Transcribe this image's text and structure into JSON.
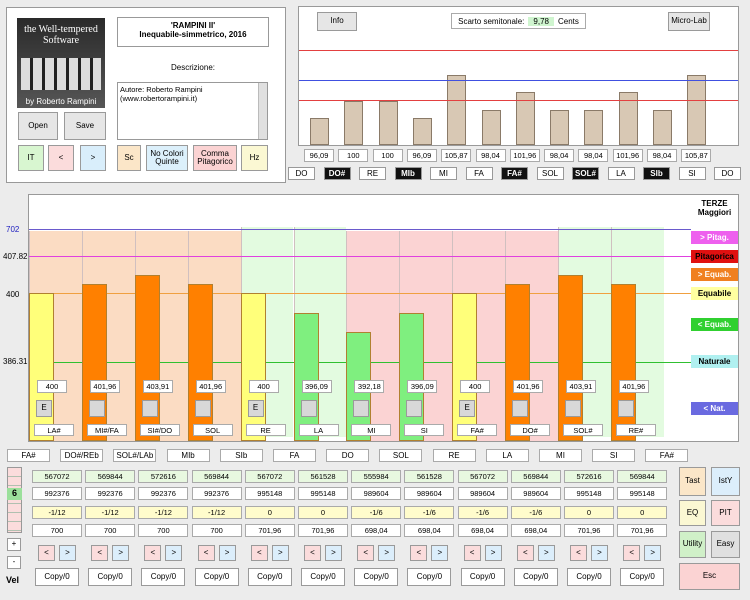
{
  "logo": {
    "line1": "the Well-tempered",
    "line2": "Software",
    "author": "by Roberto Rampini"
  },
  "title": {
    "line1": "'RAMPINI II'",
    "line2": "Inequabile-simmetrico, 2016"
  },
  "descrizione_label": "Descrizione:",
  "descrizione_text": "Autore: Roberto Rampini\n(www.robertorampini.it)",
  "buttons": {
    "open": "Open",
    "save": "Save",
    "it": "IT",
    "prev": "<",
    "next": ">",
    "sc": "Sc",
    "no_colori": "No Colori Quinte",
    "comma": "Comma Pitagorico",
    "hz": "Hz",
    "info": "Info",
    "microlab": "Micro-Lab",
    "tast": "Tast",
    "isty": "IstY",
    "eq": "EQ",
    "pit": "PIT",
    "utility": "Utility",
    "easy": "Easy",
    "esc": "Esc",
    "plus": "+",
    "minus": "-",
    "vel": "Vel"
  },
  "semitone": {
    "label": "Scarto semitonale:",
    "value": "9,78",
    "unit": "Cents"
  },
  "top_chart": {
    "values": [
      96.09,
      100,
      100,
      96.09,
      105.87,
      98.04,
      101.96,
      98.04,
      98.04,
      101.96,
      98.04,
      105.87
    ],
    "labels": [
      "96,09",
      "100",
      "100",
      "96,09",
      "105,87",
      "98,04",
      "101,96",
      "98,04",
      "98,04",
      "101,96",
      "98,04",
      "105,87"
    ],
    "ymin": 90,
    "ymax": 112
  },
  "notes_top": [
    {
      "n": "DO",
      "dark": false
    },
    {
      "n": "DO#",
      "dark": true
    },
    {
      "n": "RE",
      "dark": false
    },
    {
      "n": "MIb",
      "dark": true
    },
    {
      "n": "MI",
      "dark": false
    },
    {
      "n": "FA",
      "dark": false
    },
    {
      "n": "FA#",
      "dark": true
    },
    {
      "n": "SOL",
      "dark": false
    },
    {
      "n": "SOL#",
      "dark": true
    },
    {
      "n": "LA",
      "dark": false
    },
    {
      "n": "SIb",
      "dark": true
    },
    {
      "n": "SI",
      "dark": false
    },
    {
      "n": "DO",
      "dark": false
    }
  ],
  "thirds": {
    "axis": [
      "702",
      "407.82",
      "400",
      "386.31"
    ],
    "legend": {
      "title1": "TERZE",
      "title2": "Maggiori",
      "pitag": "> Pitag.",
      "pitagorica": "Pitagorica",
      "equab_gt": "> Equab.",
      "equabile": "Equabile",
      "equab_lt": "< Equab.",
      "naturale": "Naturale",
      "nat_lt": "< Nat."
    },
    "values": [
      400,
      401.96,
      403.91,
      401.96,
      400,
      396.09,
      392.18,
      396.09,
      400,
      401.96,
      403.91,
      401.96
    ],
    "labels": [
      "400",
      "401,96",
      "403,91",
      "401,96",
      "400",
      "396,09",
      "392,18",
      "396,09",
      "400",
      "401,96",
      "403,91",
      "401,96"
    ],
    "colors": [
      "#ffff7a",
      "#ff8000",
      "#ff8000",
      "#ff8000",
      "#ffff7a",
      "#7fef7f",
      "#7fef7f",
      "#7fef7f",
      "#ffff7a",
      "#ff8000",
      "#ff8000",
      "#ff8000"
    ],
    "bg": [
      "#fbdcc3",
      "#fbdcc3",
      "#fbdcc3",
      "#fbdcc3",
      "#e3fbe0",
      "#e3fbe0",
      "#fbd3d3",
      "#fbd3d3",
      "#fbd3d3",
      "#fbd3d3",
      "#e3fbe0",
      "#e3fbe0"
    ],
    "btn": [
      "E",
      "",
      "",
      "",
      "E",
      "",
      "",
      "",
      "E",
      "",
      "",
      ""
    ],
    "names": [
      "LA#",
      "MI#/FA",
      "SI#/DO",
      "SOL",
      "RE",
      "LA",
      "MI",
      "SI",
      "FA#",
      "DO#",
      "SOL#",
      "RE#"
    ]
  },
  "fifths_header": [
    "FA#",
    "DO#/REb",
    "SOL#/LAb",
    "MIb",
    "SIb",
    "FA",
    "DO",
    "SOL",
    "RE",
    "LA",
    "MI",
    "SI",
    "FA#"
  ],
  "row1": [
    "567072",
    "569844",
    "572616",
    "569844",
    "567072",
    "561528",
    "555984",
    "561528",
    "567072",
    "569844",
    "572616",
    "569844"
  ],
  "row2": [
    "992376",
    "992376",
    "992376",
    "992376",
    "995148",
    "995148",
    "989604",
    "989604",
    "989604",
    "989604",
    "995148",
    "995148"
  ],
  "row3": [
    "-1/12",
    "-1/12",
    "-1/12",
    "-1/12",
    "0",
    "0",
    "-1/6",
    "-1/6",
    "-1/6",
    "-1/6",
    "0",
    "0"
  ],
  "row4": [
    "700",
    "700",
    "700",
    "700",
    "701,96",
    "701,96",
    "698,04",
    "698,04",
    "698,04",
    "698,04",
    "701,96",
    "701,96"
  ],
  "side_num": "6",
  "copy_label": "Copy/0"
}
